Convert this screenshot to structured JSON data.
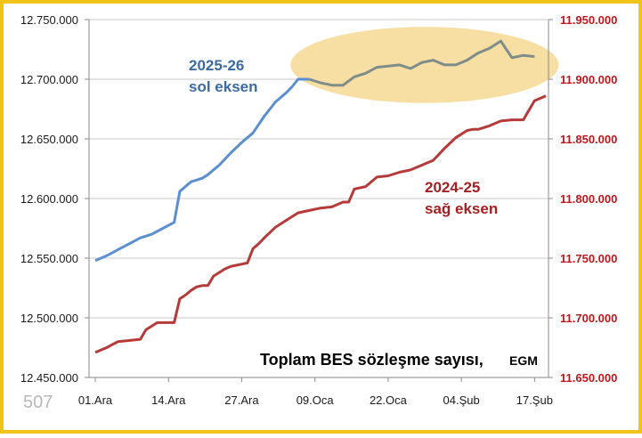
{
  "chart_data": {
    "type": "line",
    "title": "Toplam BES sözleşme sayısı,",
    "source": "EGM",
    "watermark": "507",
    "x_ticks": [
      "01.Ara",
      "14.Ara",
      "27.Ara",
      "09.Oca",
      "22.Oca",
      "04.Şub",
      "17.Şub"
    ],
    "left_axis": {
      "ylim": [
        12450000,
        12750000
      ],
      "ticks": [
        "12.450.000",
        "12.500.000",
        "12.550.000",
        "12.600.000",
        "12.650.000",
        "12.700.000",
        "12.750.000"
      ],
      "color": "#1a1a1a"
    },
    "right_axis": {
      "ylim": [
        11650000,
        11950000
      ],
      "ticks": [
        "11.650.000",
        "11.700.000",
        "11.750.000",
        "11.800.000",
        "11.850.000",
        "11.900.000",
        "11.950.000"
      ],
      "color": "#c0161b"
    },
    "x_range_days": [
      0,
      80
    ],
    "grid": "horizontal",
    "series": [
      {
        "name": "2025-26",
        "label_line1": "2025-26",
        "label_line2": "sol eksen",
        "axis": "left",
        "color": "#5b8fd1",
        "x": [
          0,
          2,
          4,
          6,
          8,
          10,
          12,
          14,
          15,
          17,
          19,
          20,
          21,
          22,
          23,
          24,
          26,
          28,
          30,
          32,
          34,
          35,
          36,
          38,
          40,
          42,
          44,
          46,
          48,
          50,
          52,
          54,
          56,
          58,
          60,
          62,
          64,
          66,
          68,
          70,
          72,
          74,
          76,
          78
        ],
        "y": [
          12548000,
          12552000,
          12557000,
          12562000,
          12567000,
          12570000,
          12575000,
          12580000,
          12606000,
          12614000,
          12617000,
          12620000,
          12624000,
          12628000,
          12633000,
          12638000,
          12647000,
          12655000,
          12669000,
          12681000,
          12689000,
          12694000,
          12700000,
          12700000,
          12697000,
          12695000,
          12695000,
          12702000,
          12705000,
          12710000,
          12711000,
          12712000,
          12709000,
          12714000,
          12716000,
          12712000,
          12712000,
          12716000,
          12722000,
          12726000,
          12732000,
          12718000,
          12720000,
          12719000
        ]
      },
      {
        "name": "2024-25",
        "label_line1": "2024-25",
        "label_line2": "sağ eksen",
        "axis": "right",
        "color": "#b63a3a",
        "x": [
          0,
          2,
          4,
          6,
          8,
          9,
          10,
          11,
          12,
          14,
          15,
          16,
          17,
          18,
          19,
          20,
          21,
          22,
          23,
          24,
          25,
          26,
          27,
          28,
          29,
          30,
          32,
          34,
          36,
          38,
          40,
          42,
          44,
          45,
          46,
          48,
          50,
          52,
          54,
          56,
          58,
          60,
          62,
          64,
          66,
          67,
          68,
          70,
          72,
          74,
          76,
          78,
          80
        ],
        "y": [
          11671000,
          11675000,
          11680000,
          11681000,
          11682000,
          11690000,
          11693000,
          11696000,
          11696000,
          11696000,
          11716000,
          11719000,
          11723000,
          11726000,
          11727000,
          11727000,
          11735000,
          11738000,
          11741000,
          11743000,
          11744000,
          11745000,
          11746000,
          11758000,
          11762000,
          11767000,
          11776000,
          11782000,
          11788000,
          11790000,
          11792000,
          11793000,
          11797000,
          11797000,
          11808000,
          11810000,
          11818000,
          11819000,
          11822000,
          11824000,
          11828000,
          11832000,
          11842000,
          11851000,
          11857000,
          11858000,
          11858000,
          11861000,
          11865000,
          11866000,
          11866000,
          11882000,
          11886000
        ]
      }
    ],
    "highlight": {
      "series": "2025-26",
      "color": "#f7dfa4"
    }
  }
}
